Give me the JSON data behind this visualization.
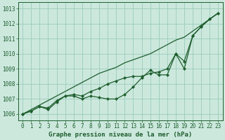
{
  "title": "Graphe pression niveau de la mer (hPa)",
  "background_color": "#cce8dd",
  "grid_color": "#99ccbb",
  "line_color": "#1e5e2e",
  "xlim_min": -0.5,
  "xlim_max": 23.5,
  "ylim_min": 1005.6,
  "ylim_max": 1013.4,
  "yticks": [
    1006,
    1007,
    1008,
    1009,
    1010,
    1011,
    1012,
    1013
  ],
  "xticks": [
    0,
    1,
    2,
    3,
    4,
    5,
    6,
    7,
    8,
    9,
    10,
    11,
    12,
    13,
    14,
    15,
    16,
    17,
    18,
    19,
    20,
    21,
    22,
    23
  ],
  "line_straight": [
    1006.0,
    1006.3,
    1006.6,
    1006.9,
    1007.2,
    1007.5,
    1007.8,
    1008.1,
    1008.4,
    1008.7,
    1008.9,
    1009.1,
    1009.4,
    1009.6,
    1009.8,
    1010.0,
    1010.3,
    1010.6,
    1010.9,
    1011.1,
    1011.5,
    1011.9,
    1012.3,
    1012.7
  ],
  "line_measured": [
    1006.0,
    1006.2,
    1006.5,
    1006.3,
    1006.8,
    1007.2,
    1007.2,
    1007.0,
    1007.2,
    1007.1,
    1007.0,
    1007.0,
    1007.3,
    1007.8,
    1008.4,
    1008.9,
    1008.6,
    1008.6,
    1010.0,
    1009.0,
    1011.2,
    1011.8,
    1012.3,
    1012.7
  ],
  "line_smooth": [
    1006.0,
    1006.2,
    1006.5,
    1006.4,
    1006.9,
    1007.2,
    1007.3,
    1007.2,
    1007.5,
    1007.7,
    1008.0,
    1008.2,
    1008.4,
    1008.5,
    1008.5,
    1008.7,
    1008.8,
    1009.0,
    1010.0,
    1009.5,
    1011.2,
    1011.8,
    1012.3,
    1012.7
  ],
  "title_fontsize": 6.5,
  "tick_fontsize": 5.5,
  "linewidth": 0.9,
  "markersize": 2.2
}
